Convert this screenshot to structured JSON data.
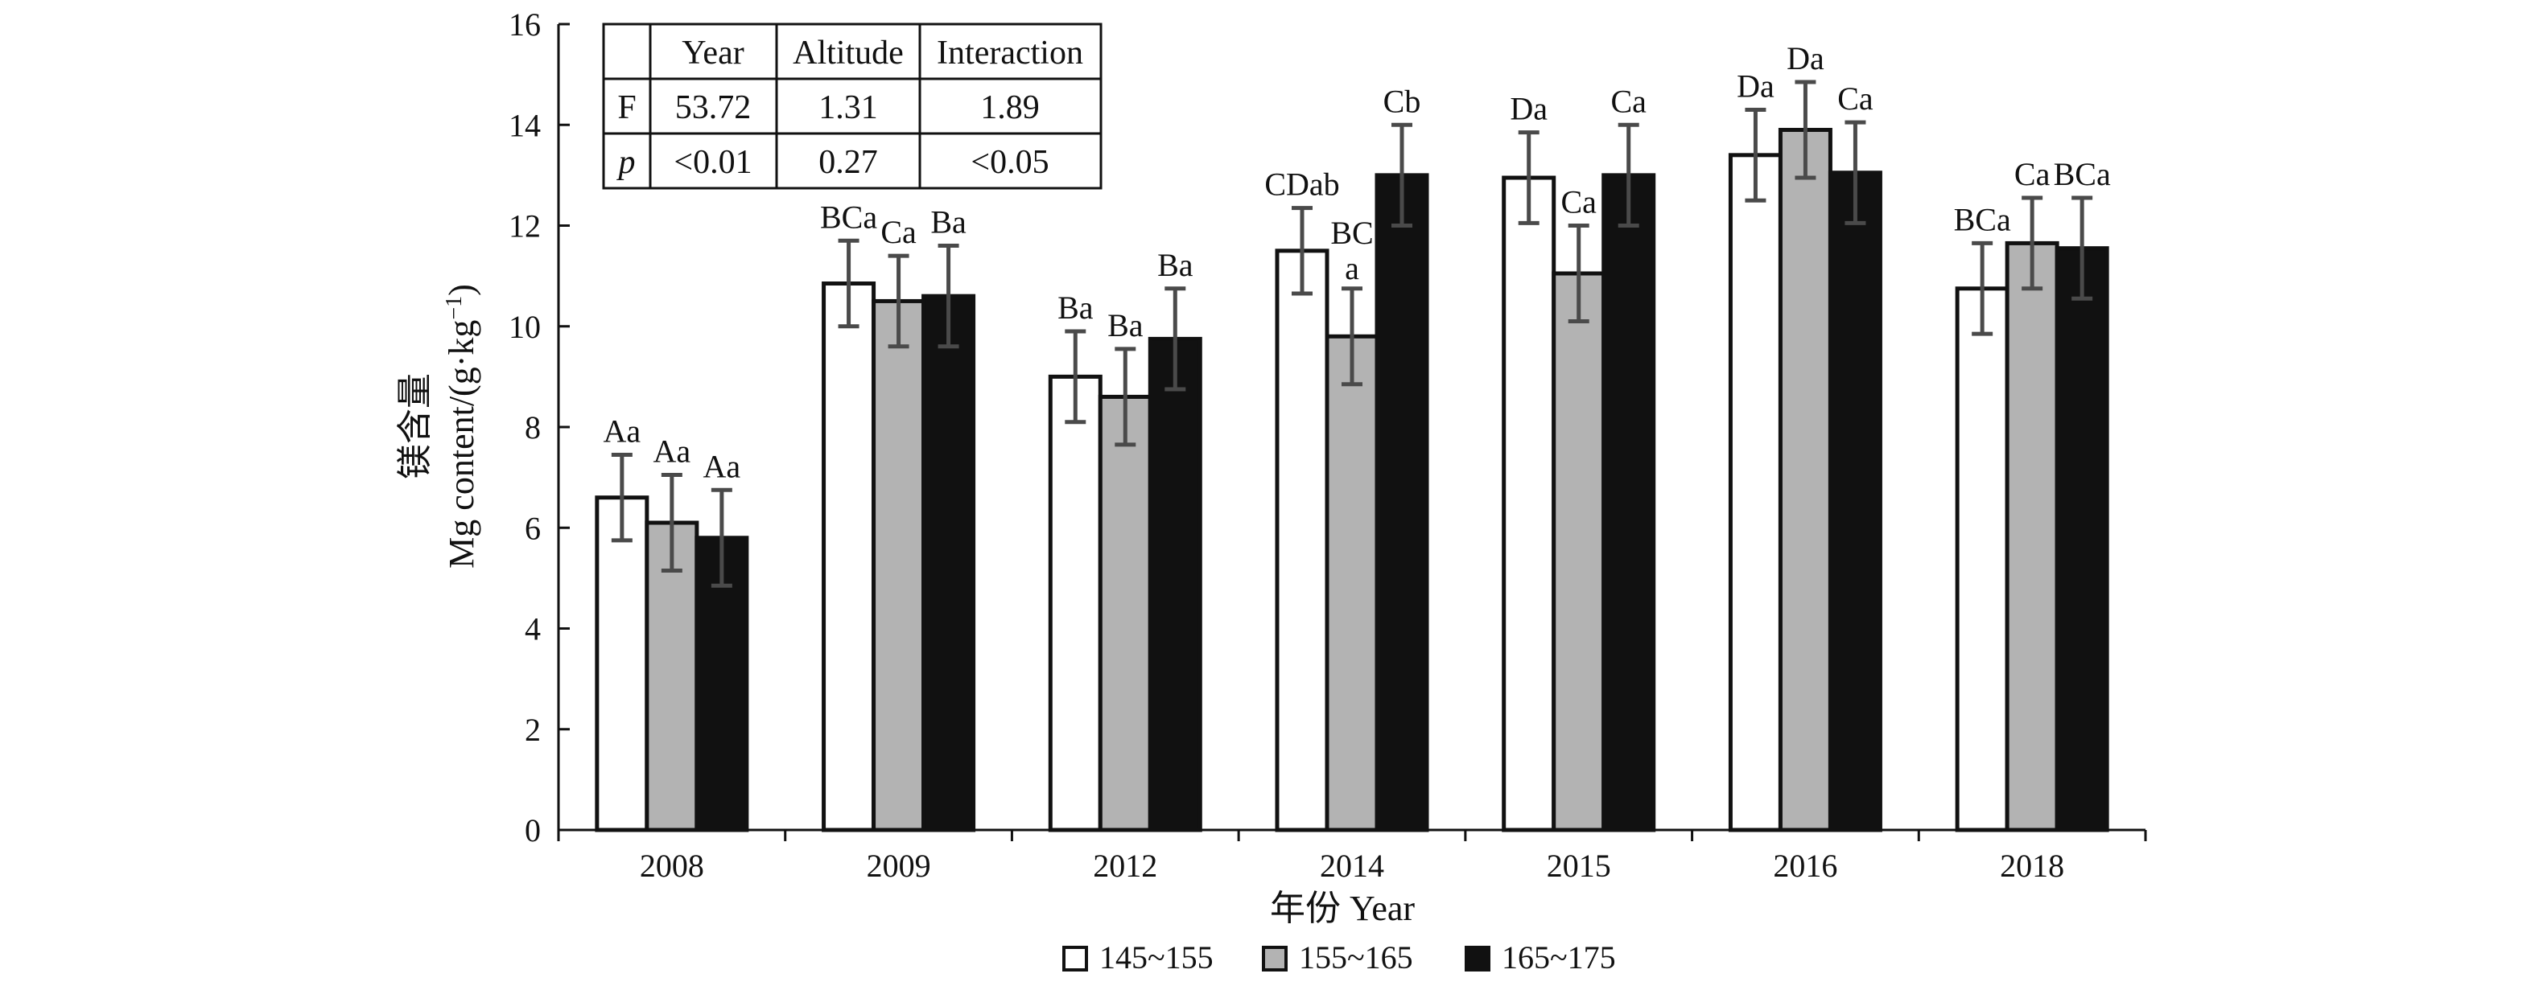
{
  "chart_data": {
    "type": "bar",
    "categories": [
      "2008",
      "2009",
      "2012",
      "2014",
      "2015",
      "2016",
      "2018"
    ],
    "series": [
      {
        "name": "145~155",
        "color": "#ffffff",
        "values": [
          6.6,
          10.85,
          9.0,
          11.5,
          12.95,
          13.4,
          10.75
        ],
        "errors": [
          0.85,
          0.85,
          0.9,
          0.85,
          0.9,
          0.9,
          0.9
        ],
        "labels": [
          "Aa",
          "BCa",
          "Ba",
          "CDab",
          "Da",
          "Da",
          "BCa"
        ]
      },
      {
        "name": "155~165",
        "color": "#b3b3b3",
        "values": [
          6.1,
          10.5,
          8.6,
          9.8,
          11.05,
          13.9,
          11.65
        ],
        "errors": [
          0.95,
          0.9,
          0.95,
          0.95,
          0.95,
          0.95,
          0.9
        ],
        "labels": [
          "Aa",
          "Ca",
          "Ba",
          "BC a",
          "Ca",
          "Da",
          "Ca"
        ]
      },
      {
        "name": "165~175",
        "color": "#111111",
        "values": [
          5.8,
          10.6,
          9.75,
          13.0,
          13.0,
          13.05,
          11.55
        ],
        "errors": [
          0.95,
          1.0,
          1.0,
          1.0,
          1.0,
          1.0,
          1.0
        ],
        "labels": [
          "Aa",
          "Ba",
          "Ba",
          "Cb",
          "Ca",
          "Ca",
          "BCa"
        ]
      }
    ],
    "xlabel": "年份 Year",
    "ylabel_cn": "镁含量",
    "ylabel_en": "Mg content/(g·kg",
    "ylabel_sup": "−1",
    "ylabel_end": ")",
    "ylim": [
      0,
      16
    ],
    "yticks": [
      0,
      2,
      4,
      6,
      8,
      10,
      12,
      14,
      16
    ],
    "grid": false,
    "legend_position": "bottom",
    "stats_table": {
      "headers": [
        "",
        "Year",
        "Altitude",
        "Interaction"
      ],
      "rows": [
        [
          "F",
          "53.72",
          "1.31",
          "1.89"
        ],
        [
          "p",
          "<0.01",
          "0.27",
          "<0.05"
        ]
      ]
    }
  }
}
